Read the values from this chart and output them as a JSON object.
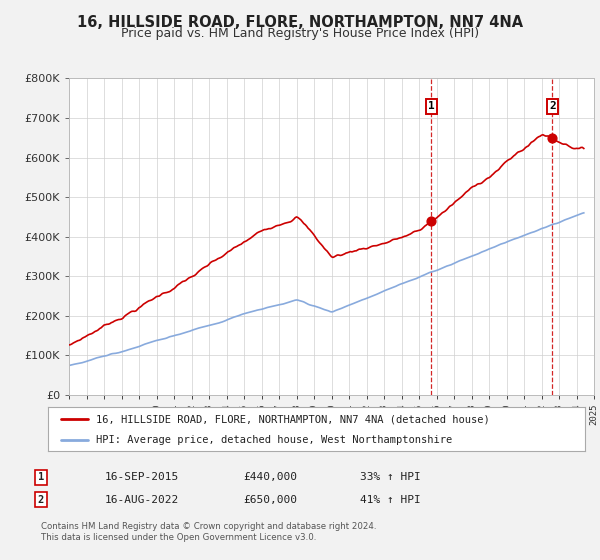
{
  "title": "16, HILLSIDE ROAD, FLORE, NORTHAMPTON, NN7 4NA",
  "subtitle": "Price paid vs. HM Land Registry's House Price Index (HPI)",
  "legend_label1": "16, HILLSIDE ROAD, FLORE, NORTHAMPTON, NN7 4NA (detached house)",
  "legend_label2": "HPI: Average price, detached house, West Northamptonshire",
  "sale1_date": "16-SEP-2015",
  "sale1_price": "£440,000",
  "sale1_hpi": "33% ↑ HPI",
  "sale1_year": 2015.71,
  "sale1_value": 440000,
  "sale2_date": "16-AUG-2022",
  "sale2_price": "£650,000",
  "sale2_hpi": "41% ↑ HPI",
  "sale2_year": 2022.62,
  "sale2_value": 650000,
  "property_color": "#cc0000",
  "hpi_color": "#88aadd",
  "vline_color": "#cc0000",
  "background_color": "#f2f2f2",
  "plot_bg_color": "#ffffff",
  "ylim": [
    0,
    800000
  ],
  "xlim_start": 1995,
  "xlim_end": 2025,
  "footnote1": "Contains HM Land Registry data © Crown copyright and database right 2024.",
  "footnote2": "This data is licensed under the Open Government Licence v3.0."
}
